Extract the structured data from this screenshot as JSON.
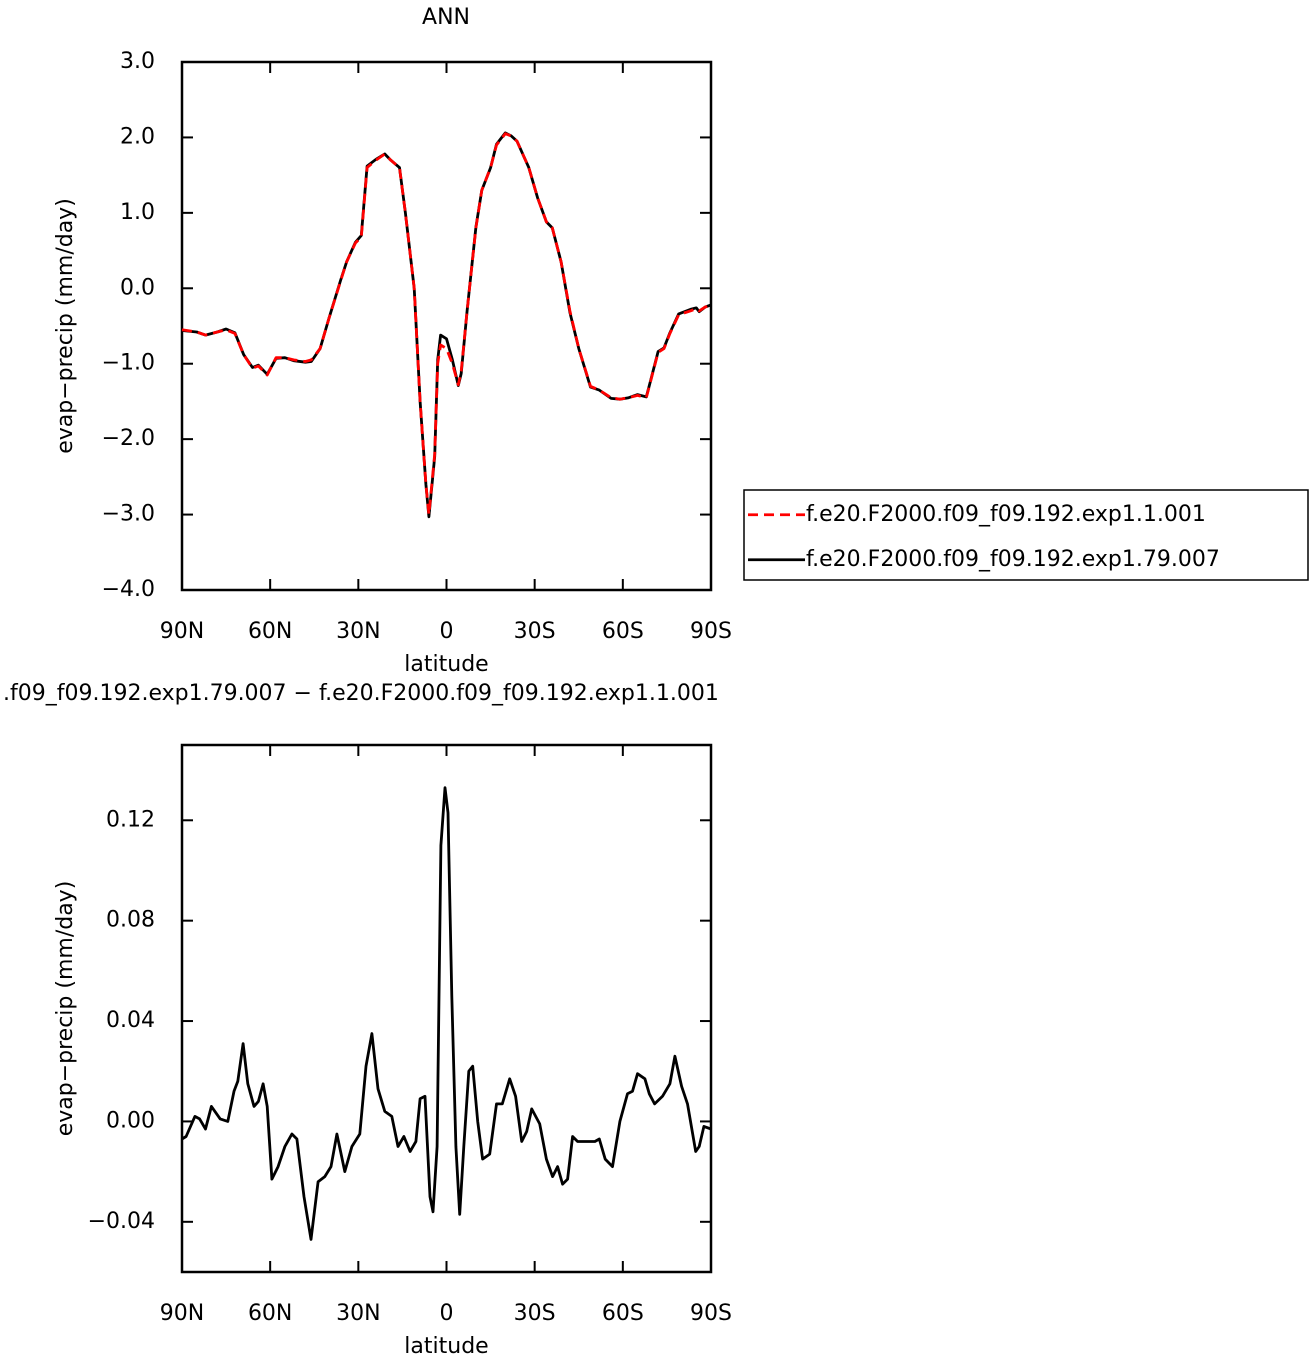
{
  "chart_data": [
    {
      "type": "line",
      "title": "ANN",
      "x_label": "latitude",
      "y_label": "evap−precip (mm/day)",
      "xlim": [
        90,
        -90
      ],
      "ylim": [
        -4,
        3
      ],
      "xticks": [
        {
          "value": 90,
          "label": "90N"
        },
        {
          "value": 60,
          "label": "60N"
        },
        {
          "value": 30,
          "label": "30N"
        },
        0,
        {
          "value": -30,
          "label": "30S"
        },
        {
          "value": -60,
          "label": "60S"
        },
        {
          "value": -90,
          "label": "90S"
        }
      ],
      "yticks": [
        {
          "value": 3,
          "label": "3.0"
        },
        {
          "value": 2,
          "label": "2.0"
        },
        {
          "value": 1,
          "label": "1.0"
        },
        {
          "value": 0,
          "label": "0.0"
        },
        {
          "value": -1,
          "label": "−1.0"
        },
        {
          "value": -2,
          "label": "−2.0"
        },
        {
          "value": -3,
          "label": "−3.0"
        },
        {
          "value": -4,
          "label": "−4.0"
        }
      ],
      "legend": "right",
      "x": [
        90,
        85,
        82,
        78,
        75,
        72,
        69,
        66,
        64,
        61,
        58,
        55,
        52,
        48,
        46,
        43,
        40,
        36,
        34,
        31,
        29,
        27,
        24,
        21,
        19,
        16,
        14,
        11,
        9,
        7,
        6,
        4,
        3,
        2,
        0,
        -2,
        -4,
        -5,
        -7,
        -10,
        -12,
        -15,
        -17,
        -20,
        -22,
        -24,
        -28,
        -31,
        -34,
        -36,
        -39,
        -42,
        -45,
        -49,
        -52,
        -56,
        -59,
        -62,
        -65,
        -68,
        -69,
        -72,
        -74,
        -76,
        -79,
        -83,
        -85,
        -86,
        -88,
        -90
      ],
      "series": [
        {
          "name": "f.e20.F2000.f09_f09.192.exp1.1.001",
          "color": "#ff0000",
          "dashed": true,
          "values": [
            -0.55,
            -0.58,
            -0.62,
            -0.58,
            -0.55,
            -0.6,
            -0.88,
            -1.06,
            -1.03,
            -1.15,
            -0.92,
            -0.92,
            -0.95,
            -0.97,
            -0.95,
            -0.8,
            -0.4,
            0.1,
            0.35,
            0.6,
            0.68,
            1.6,
            1.7,
            1.78,
            1.7,
            1.6,
            1.0,
            0.0,
            -1.5,
            -2.6,
            -3.0,
            -2.2,
            -1.0,
            -0.75,
            -0.8,
            -1.0,
            -1.28,
            -1.1,
            -0.3,
            0.8,
            1.3,
            1.6,
            1.9,
            2.05,
            2.02,
            1.95,
            1.6,
            1.2,
            0.88,
            0.8,
            0.35,
            -0.3,
            -0.8,
            -1.3,
            -1.35,
            -1.45,
            -1.47,
            -1.45,
            -1.42,
            -1.45,
            -1.3,
            -0.85,
            -0.8,
            -0.6,
            -0.35,
            -0.3,
            -0.27,
            -0.3,
            -0.25,
            -0.22
          ]
        },
        {
          "name": "f.e20.F2000.f09_f09.192.exp1.79.007",
          "color": "#000000",
          "dashed": false,
          "values": [
            -0.56,
            -0.58,
            -0.62,
            -0.58,
            -0.54,
            -0.59,
            -0.88,
            -1.05,
            -1.02,
            -1.14,
            -0.93,
            -0.92,
            -0.96,
            -0.98,
            -0.97,
            -0.8,
            -0.4,
            0.11,
            0.35,
            0.61,
            0.7,
            1.62,
            1.71,
            1.78,
            1.7,
            1.6,
            1.0,
            0.0,
            -1.5,
            -2.6,
            -3.03,
            -2.23,
            -0.95,
            -0.62,
            -0.67,
            -0.95,
            -1.29,
            -1.13,
            -0.3,
            0.81,
            1.3,
            1.6,
            1.91,
            2.06,
            2.02,
            1.95,
            1.6,
            1.2,
            0.88,
            0.8,
            0.35,
            -0.32,
            -0.8,
            -1.31,
            -1.35,
            -1.46,
            -1.47,
            -1.45,
            -1.41,
            -1.44,
            -1.29,
            -0.84,
            -0.79,
            -0.59,
            -0.34,
            -0.28,
            -0.26,
            -0.31,
            -0.25,
            -0.22
          ]
        }
      ]
    },
    {
      "type": "line",
      "title": ".f09_f09.192.exp1.79.007 − f.e20.F2000.f09_f09.192.exp1.1.001",
      "x_label": "latitude",
      "y_label": "evap−precip (mm/day)",
      "xlim": [
        90,
        -90
      ],
      "ylim": [
        -0.06,
        0.15
      ],
      "xticks": [
        {
          "value": 90,
          "label": "90N"
        },
        {
          "value": 60,
          "label": "60N"
        },
        {
          "value": 30,
          "label": "30N"
        },
        0,
        {
          "value": -30,
          "label": "30S"
        },
        {
          "value": -60,
          "label": "60S"
        },
        {
          "value": -90,
          "label": "90S"
        }
      ],
      "yticks": [
        0.12,
        0.08,
        0.04,
        {
          "value": 0,
          "label": "0.00"
        },
        {
          "value": -0.04,
          "label": "−0.04"
        }
      ],
      "color": "#000000",
      "x": [
        90,
        88.6,
        85.6,
        84,
        82,
        80,
        77,
        74.4,
        72.3,
        71,
        69.2,
        67.6,
        65.5,
        64,
        62.4,
        61,
        59.4,
        57.3,
        55,
        52.6,
        50.9,
        48.5,
        46.1,
        43.7,
        41.4,
        39.3,
        37.3,
        34.6,
        32.2,
        29.5,
        27.4,
        25.4,
        23.3,
        21,
        18.6,
        16.5,
        14.5,
        12.4,
        10.4,
        9,
        7.3,
        5.6,
        4.6,
        3.2,
        1.9,
        0.5,
        -0.5,
        -1.8,
        -3.2,
        -4.5,
        -5.9,
        -7.6,
        -8.9,
        -10.6,
        -12.3,
        -14.7,
        -17,
        -19,
        -21.5,
        -23.5,
        -25.6,
        -27.3,
        -29,
        -31.7,
        -34,
        -36.1,
        -37.8,
        -39.5,
        -41.2,
        -42.9,
        -44.6,
        -47,
        -50.5,
        -52,
        -54,
        -56.5,
        -59,
        -61.6,
        -63.3,
        -65,
        -67.5,
        -69,
        -70.8,
        -73.5,
        -76,
        -77.7,
        -80,
        -82,
        -84.8,
        -86,
        -87.6,
        -90
      ],
      "values": [
        -0.007,
        -0.006,
        0.002,
        0.001,
        -0.003,
        0.006,
        0.001,
        0.0,
        0.012,
        0.016,
        0.031,
        0.015,
        0.006,
        0.008,
        0.015,
        0.006,
        -0.023,
        -0.018,
        -0.01,
        -0.005,
        -0.007,
        -0.03,
        -0.047,
        -0.024,
        -0.022,
        -0.018,
        -0.005,
        -0.02,
        -0.01,
        -0.005,
        0.022,
        0.035,
        0.013,
        0.004,
        0.002,
        -0.01,
        -0.006,
        -0.012,
        -0.008,
        0.009,
        0.01,
        -0.03,
        -0.036,
        -0.01,
        0.11,
        0.133,
        0.123,
        0.05,
        -0.01,
        -0.037,
        -0.01,
        0.02,
        0.022,
        0.0,
        -0.015,
        -0.013,
        0.007,
        0.007,
        0.017,
        0.01,
        -0.008,
        -0.004,
        0.005,
        -0.001,
        -0.015,
        -0.022,
        -0.018,
        -0.025,
        -0.023,
        -0.006,
        -0.008,
        -0.008,
        -0.008,
        -0.007,
        -0.015,
        -0.018,
        0.0,
        0.011,
        0.012,
        0.019,
        0.017,
        0.011,
        0.007,
        0.01,
        0.015,
        0.026,
        0.014,
        0.007,
        -0.012,
        -0.01,
        -0.002,
        -0.003
      ]
    }
  ]
}
